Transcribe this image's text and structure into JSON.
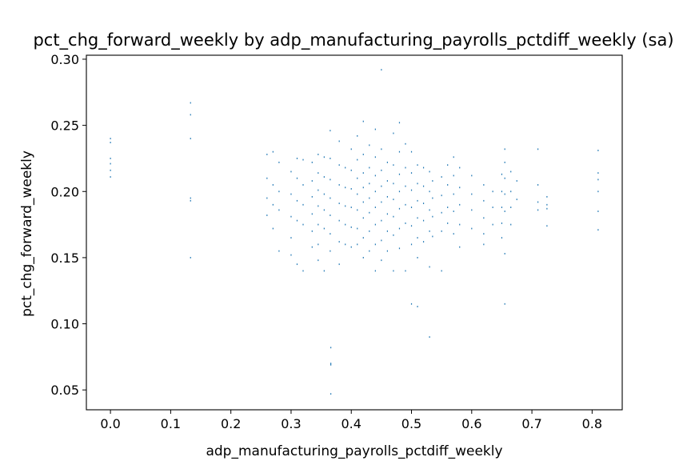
{
  "chart_data": {
    "type": "scatter",
    "title": "pct_chg_forward_weekly by adp_manufacturing_payrolls_pctdiff_weekly (sa)",
    "xlabel": "adp_manufacturing_payrolls_pctdiff_weekly",
    "ylabel": "pct_chg_forward_weekly",
    "xlim": [
      -0.04,
      0.85
    ],
    "ylim": [
      0.035,
      0.303
    ],
    "xticks": [
      0.0,
      0.1,
      0.2,
      0.3,
      0.4,
      0.5,
      0.6,
      0.7,
      0.8
    ],
    "xtick_labels": [
      "0.0",
      "0.1",
      "0.2",
      "0.3",
      "0.4",
      "0.5",
      "0.6",
      "0.7",
      "0.8"
    ],
    "yticks": [
      0.05,
      0.1,
      0.15,
      0.2,
      0.25,
      0.3
    ],
    "ytick_labels": [
      "0.05",
      "0.10",
      "0.15",
      "0.20",
      "0.25",
      "0.30"
    ],
    "grid": false,
    "legend": "none",
    "point_color": "#1f77b4",
    "points": [
      [
        0.0,
        0.24
      ],
      [
        0.0,
        0.237
      ],
      [
        0.0,
        0.225
      ],
      [
        0.0,
        0.221
      ],
      [
        0.0,
        0.216
      ],
      [
        0.0,
        0.211
      ],
      [
        0.133,
        0.267
      ],
      [
        0.133,
        0.258
      ],
      [
        0.133,
        0.24
      ],
      [
        0.133,
        0.195
      ],
      [
        0.133,
        0.193
      ],
      [
        0.133,
        0.15
      ],
      [
        0.26,
        0.228
      ],
      [
        0.26,
        0.21
      ],
      [
        0.26,
        0.195
      ],
      [
        0.26,
        0.182
      ],
      [
        0.27,
        0.23
      ],
      [
        0.27,
        0.205
      ],
      [
        0.27,
        0.19
      ],
      [
        0.27,
        0.172
      ],
      [
        0.28,
        0.222
      ],
      [
        0.28,
        0.2
      ],
      [
        0.28,
        0.186
      ],
      [
        0.28,
        0.155
      ],
      [
        0.3,
        0.215
      ],
      [
        0.3,
        0.198
      ],
      [
        0.3,
        0.181
      ],
      [
        0.3,
        0.165
      ],
      [
        0.3,
        0.152
      ],
      [
        0.31,
        0.225
      ],
      [
        0.31,
        0.21
      ],
      [
        0.31,
        0.193
      ],
      [
        0.31,
        0.178
      ],
      [
        0.31,
        0.145
      ],
      [
        0.32,
        0.224
      ],
      [
        0.32,
        0.205
      ],
      [
        0.32,
        0.19
      ],
      [
        0.32,
        0.175
      ],
      [
        0.32,
        0.14
      ],
      [
        0.335,
        0.222
      ],
      [
        0.335,
        0.208
      ],
      [
        0.335,
        0.196
      ],
      [
        0.335,
        0.183
      ],
      [
        0.335,
        0.17
      ],
      [
        0.335,
        0.158
      ],
      [
        0.345,
        0.228
      ],
      [
        0.345,
        0.214
      ],
      [
        0.345,
        0.201
      ],
      [
        0.345,
        0.189
      ],
      [
        0.345,
        0.175
      ],
      [
        0.345,
        0.16
      ],
      [
        0.345,
        0.148
      ],
      [
        0.355,
        0.226
      ],
      [
        0.355,
        0.211
      ],
      [
        0.355,
        0.198
      ],
      [
        0.355,
        0.186
      ],
      [
        0.355,
        0.172
      ],
      [
        0.355,
        0.14
      ],
      [
        0.365,
        0.246
      ],
      [
        0.365,
        0.225
      ],
      [
        0.365,
        0.209
      ],
      [
        0.365,
        0.195
      ],
      [
        0.365,
        0.182
      ],
      [
        0.365,
        0.168
      ],
      [
        0.365,
        0.155
      ],
      [
        0.366,
        0.082
      ],
      [
        0.366,
        0.07
      ],
      [
        0.366,
        0.069
      ],
      [
        0.366,
        0.047
      ],
      [
        0.38,
        0.238
      ],
      [
        0.38,
        0.22
      ],
      [
        0.38,
        0.205
      ],
      [
        0.38,
        0.191
      ],
      [
        0.38,
        0.178
      ],
      [
        0.38,
        0.162
      ],
      [
        0.38,
        0.145
      ],
      [
        0.39,
        0.218
      ],
      [
        0.39,
        0.203
      ],
      [
        0.39,
        0.189
      ],
      [
        0.39,
        0.175
      ],
      [
        0.39,
        0.16
      ],
      [
        0.4,
        0.232
      ],
      [
        0.4,
        0.216
      ],
      [
        0.4,
        0.202
      ],
      [
        0.4,
        0.188
      ],
      [
        0.4,
        0.173
      ],
      [
        0.4,
        0.158
      ],
      [
        0.41,
        0.242
      ],
      [
        0.41,
        0.224
      ],
      [
        0.41,
        0.21
      ],
      [
        0.41,
        0.198
      ],
      [
        0.41,
        0.186
      ],
      [
        0.41,
        0.172
      ],
      [
        0.41,
        0.16
      ],
      [
        0.42,
        0.253
      ],
      [
        0.42,
        0.228
      ],
      [
        0.42,
        0.214
      ],
      [
        0.42,
        0.203
      ],
      [
        0.42,
        0.192
      ],
      [
        0.42,
        0.18
      ],
      [
        0.42,
        0.165
      ],
      [
        0.42,
        0.15
      ],
      [
        0.43,
        0.235
      ],
      [
        0.43,
        0.218
      ],
      [
        0.43,
        0.206
      ],
      [
        0.43,
        0.195
      ],
      [
        0.43,
        0.184
      ],
      [
        0.43,
        0.17
      ],
      [
        0.43,
        0.155
      ],
      [
        0.44,
        0.247
      ],
      [
        0.44,
        0.226
      ],
      [
        0.44,
        0.212
      ],
      [
        0.44,
        0.2
      ],
      [
        0.44,
        0.188
      ],
      [
        0.44,
        0.175
      ],
      [
        0.44,
        0.16
      ],
      [
        0.44,
        0.14
      ],
      [
        0.45,
        0.292
      ],
      [
        0.45,
        0.232
      ],
      [
        0.45,
        0.216
      ],
      [
        0.45,
        0.204
      ],
      [
        0.45,
        0.192
      ],
      [
        0.45,
        0.178
      ],
      [
        0.45,
        0.163
      ],
      [
        0.45,
        0.148
      ],
      [
        0.46,
        0.222
      ],
      [
        0.46,
        0.208
      ],
      [
        0.46,
        0.196
      ],
      [
        0.46,
        0.183
      ],
      [
        0.46,
        0.17
      ],
      [
        0.46,
        0.155
      ],
      [
        0.47,
        0.244
      ],
      [
        0.47,
        0.22
      ],
      [
        0.47,
        0.206
      ],
      [
        0.47,
        0.194
      ],
      [
        0.47,
        0.181
      ],
      [
        0.47,
        0.167
      ],
      [
        0.47,
        0.14
      ],
      [
        0.48,
        0.252
      ],
      [
        0.48,
        0.23
      ],
      [
        0.48,
        0.213
      ],
      [
        0.48,
        0.2
      ],
      [
        0.48,
        0.187
      ],
      [
        0.48,
        0.172
      ],
      [
        0.48,
        0.157
      ],
      [
        0.49,
        0.236
      ],
      [
        0.49,
        0.218
      ],
      [
        0.49,
        0.204
      ],
      [
        0.49,
        0.19
      ],
      [
        0.49,
        0.176
      ],
      [
        0.49,
        0.14
      ],
      [
        0.5,
        0.23
      ],
      [
        0.5,
        0.214
      ],
      [
        0.5,
        0.201
      ],
      [
        0.5,
        0.188
      ],
      [
        0.5,
        0.174
      ],
      [
        0.5,
        0.16
      ],
      [
        0.5,
        0.115
      ],
      [
        0.51,
        0.22
      ],
      [
        0.51,
        0.206
      ],
      [
        0.51,
        0.193
      ],
      [
        0.51,
        0.18
      ],
      [
        0.51,
        0.165
      ],
      [
        0.51,
        0.15
      ],
      [
        0.51,
        0.113
      ],
      [
        0.52,
        0.218
      ],
      [
        0.52,
        0.204
      ],
      [
        0.52,
        0.191
      ],
      [
        0.52,
        0.178
      ],
      [
        0.52,
        0.162
      ],
      [
        0.53,
        0.215
      ],
      [
        0.53,
        0.2
      ],
      [
        0.53,
        0.186
      ],
      [
        0.53,
        0.17
      ],
      [
        0.53,
        0.143
      ],
      [
        0.53,
        0.09
      ],
      [
        0.535,
        0.208
      ],
      [
        0.535,
        0.195
      ],
      [
        0.535,
        0.181
      ],
      [
        0.535,
        0.166
      ],
      [
        0.55,
        0.211
      ],
      [
        0.55,
        0.197
      ],
      [
        0.55,
        0.184
      ],
      [
        0.55,
        0.17
      ],
      [
        0.55,
        0.14
      ],
      [
        0.56,
        0.22
      ],
      [
        0.56,
        0.205
      ],
      [
        0.56,
        0.188
      ],
      [
        0.56,
        0.176
      ],
      [
        0.57,
        0.226
      ],
      [
        0.57,
        0.212
      ],
      [
        0.57,
        0.198
      ],
      [
        0.57,
        0.185
      ],
      [
        0.57,
        0.168
      ],
      [
        0.58,
        0.218
      ],
      [
        0.58,
        0.203
      ],
      [
        0.58,
        0.19
      ],
      [
        0.58,
        0.175
      ],
      [
        0.58,
        0.158
      ],
      [
        0.6,
        0.212
      ],
      [
        0.6,
        0.198
      ],
      [
        0.6,
        0.186
      ],
      [
        0.6,
        0.172
      ],
      [
        0.62,
        0.205
      ],
      [
        0.62,
        0.193
      ],
      [
        0.62,
        0.18
      ],
      [
        0.62,
        0.168
      ],
      [
        0.62,
        0.16
      ],
      [
        0.635,
        0.2
      ],
      [
        0.635,
        0.188
      ],
      [
        0.635,
        0.175
      ],
      [
        0.65,
        0.213
      ],
      [
        0.65,
        0.2
      ],
      [
        0.65,
        0.188
      ],
      [
        0.65,
        0.176
      ],
      [
        0.65,
        0.165
      ],
      [
        0.655,
        0.232
      ],
      [
        0.655,
        0.222
      ],
      [
        0.655,
        0.21
      ],
      [
        0.655,
        0.198
      ],
      [
        0.655,
        0.185
      ],
      [
        0.655,
        0.153
      ],
      [
        0.655,
        0.115
      ],
      [
        0.665,
        0.215
      ],
      [
        0.665,
        0.2
      ],
      [
        0.665,
        0.188
      ],
      [
        0.665,
        0.175
      ],
      [
        0.675,
        0.208
      ],
      [
        0.675,
        0.194
      ],
      [
        0.71,
        0.232
      ],
      [
        0.71,
        0.205
      ],
      [
        0.71,
        0.192
      ],
      [
        0.71,
        0.186
      ],
      [
        0.725,
        0.196
      ],
      [
        0.725,
        0.19
      ],
      [
        0.725,
        0.187
      ],
      [
        0.725,
        0.174
      ],
      [
        0.81,
        0.231
      ],
      [
        0.81,
        0.214
      ],
      [
        0.81,
        0.209
      ],
      [
        0.81,
        0.2
      ],
      [
        0.81,
        0.185
      ],
      [
        0.81,
        0.171
      ]
    ]
  }
}
